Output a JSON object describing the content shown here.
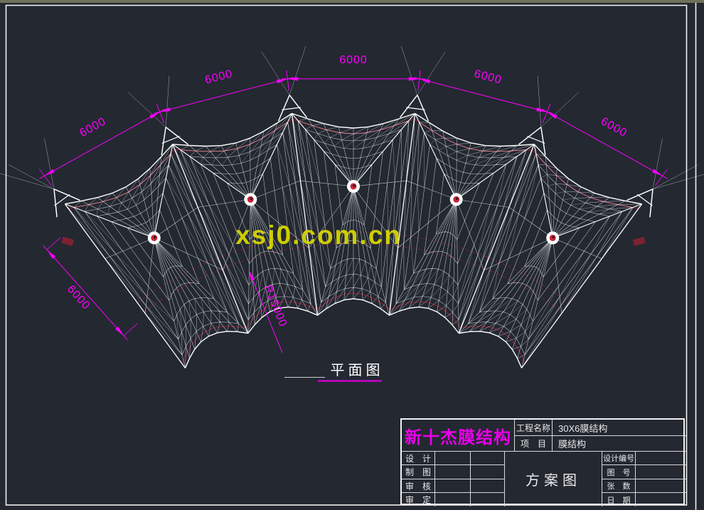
{
  "window": {
    "strip_color": "#6f7259"
  },
  "colors": {
    "background": "#232831",
    "frame": "#f2f2f2",
    "mesh_line": "#e8ecf2",
    "structure_line": "#ffffff",
    "edge_red": "#7c2231",
    "apex_red": "#c9243a",
    "dimension": "#ff00ff"
  },
  "watermark": {
    "text": "xsj0.com.cn",
    "color": "#d6d600"
  },
  "plan": {
    "caption": "平面图"
  },
  "dims": {
    "span_label": "6000",
    "radius_label": "R15000"
  },
  "title_block": {
    "company": "新十杰膜结构",
    "company_color": "#e800e8",
    "project_label": "工程名称",
    "project_value": "30X6膜结构",
    "item_label": "项　目",
    "item_value": "膜结构",
    "sign_rows": [
      "设　计",
      "制　图",
      "审　核",
      "审　定"
    ],
    "scheme_title": "方案图",
    "right_rows": [
      "设计编号",
      "图　号",
      "张　数",
      "日　期"
    ]
  }
}
